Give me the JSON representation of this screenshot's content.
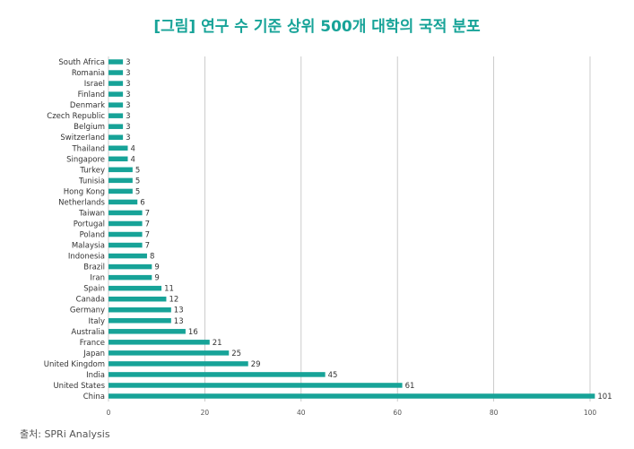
{
  "chart_data": {
    "type": "bar",
    "orientation": "horizontal",
    "title": "[그림] 연구 수 기준 상위 500개 대학의 국적 분포",
    "source": "출처: SPRi Analysis",
    "xlim": [
      0,
      100
    ],
    "xticks": [
      0,
      20,
      40,
      60,
      80,
      100
    ],
    "grid": true,
    "bar_color": "#17a398",
    "categories": [
      "South Africa",
      "Romania",
      "Israel",
      "Finland",
      "Denmark",
      "Czech Republic",
      "Belgium",
      "Switzerland",
      "Thailand",
      "Singapore",
      "Turkey",
      "Tunisia",
      "Hong Kong",
      "Netherlands",
      "Taiwan",
      "Portugal",
      "Poland",
      "Malaysia",
      "Indonesia",
      "Brazil",
      "Iran",
      "Spain",
      "Canada",
      "Germany",
      "Italy",
      "Australia",
      "France",
      "Japan",
      "United Kingdom",
      "India",
      "United States",
      "China"
    ],
    "values": [
      3,
      3,
      3,
      3,
      3,
      3,
      3,
      3,
      4,
      4,
      5,
      5,
      5,
      6,
      7,
      7,
      7,
      7,
      8,
      9,
      9,
      11,
      12,
      13,
      13,
      16,
      21,
      25,
      29,
      45,
      61,
      101
    ]
  }
}
